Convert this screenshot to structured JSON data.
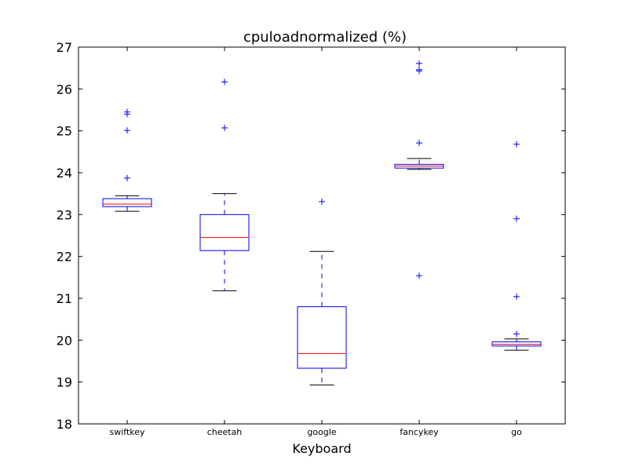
{
  "chart_data": {
    "type": "box",
    "title": "cpuloadnormalized (%)",
    "xlabel": "Keyboard",
    "ylabel": "",
    "ylim": [
      18,
      27
    ],
    "yticks": [
      "18",
      "19",
      "20",
      "21",
      "22",
      "23",
      "24",
      "25",
      "26",
      "27"
    ],
    "grid": false,
    "colors": {
      "box": "#0000ff",
      "median": "#ff0000",
      "whisker": "#0000ff",
      "cap": "#000000",
      "flier": "#0000ff"
    },
    "categories": [
      "swiftkey",
      "cheetah",
      "google",
      "fancykey",
      "go"
    ],
    "boxes": [
      {
        "name": "swiftkey",
        "whislo": 23.08,
        "q1": 23.19,
        "median": 23.25,
        "q3": 23.38,
        "whishi": 23.45,
        "fliers": [
          23.87,
          25.01,
          25.4,
          25.45
        ]
      },
      {
        "name": "cheetah",
        "whislo": 21.18,
        "q1": 22.14,
        "median": 22.45,
        "q3": 23.0,
        "whishi": 23.5,
        "fliers": [
          25.07,
          26.17
        ]
      },
      {
        "name": "google",
        "whislo": 18.93,
        "q1": 19.33,
        "median": 19.68,
        "q3": 20.8,
        "whishi": 22.12,
        "fliers": [
          23.31
        ]
      },
      {
        "name": "fancykey",
        "whislo": 24.08,
        "q1": 24.11,
        "median": 24.16,
        "q3": 24.2,
        "whishi": 24.34,
        "fliers": [
          21.54,
          24.71,
          26.43,
          26.46,
          26.61
        ]
      },
      {
        "name": "go",
        "whislo": 19.76,
        "q1": 19.86,
        "median": 19.9,
        "q3": 19.96,
        "whishi": 20.03,
        "fliers": [
          20.15,
          21.04,
          22.9,
          24.68
        ]
      }
    ]
  }
}
